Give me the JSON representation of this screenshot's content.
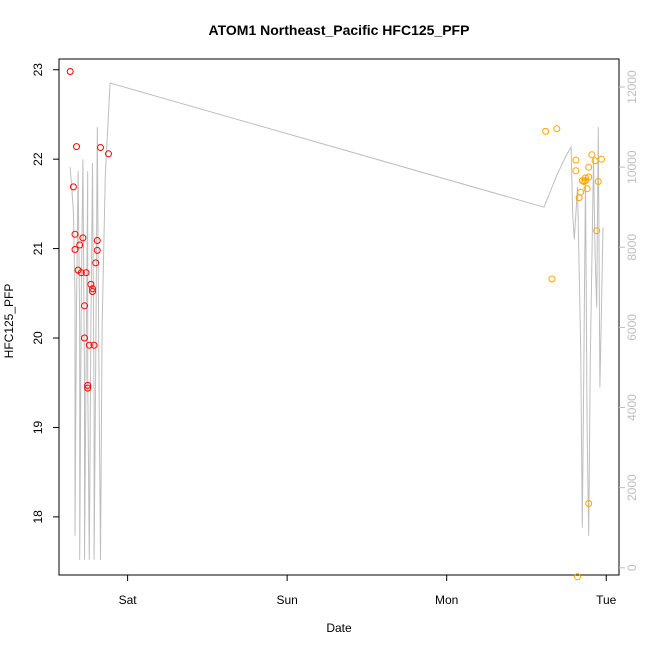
{
  "chart_data": {
    "type": "scatter",
    "title": "ATOM1 Northeast_Pacific HFC125_PFP",
    "xlabel": "Date",
    "ylabel": "HFC125_PFP",
    "x_unit": "days since the Sat tick",
    "xlim": [
      -0.43,
      3.08
    ],
    "ylim": [
      17.35,
      23.12
    ],
    "y2lim": [
      -180,
      12700
    ],
    "x_ticks": [
      {
        "label": "Sat",
        "value": 0
      },
      {
        "label": "Sun",
        "value": 1
      },
      {
        "label": "Mon",
        "value": 2
      },
      {
        "label": "Tue",
        "value": 3
      }
    ],
    "y_ticks": [
      18,
      19,
      20,
      21,
      22,
      23
    ],
    "y2_ticks": [
      0,
      2000,
      4000,
      6000,
      8000,
      10000,
      12000
    ],
    "grid": false,
    "colors": {
      "series1": "#ff0000",
      "series2": "#ffa500",
      "altitude_line": "#bebebe",
      "axis": "#000000",
      "right_axis": "#bebebe"
    },
    "series": [
      {
        "color": "#ff0000",
        "points": [
          [
            -0.36,
            22.98
          ],
          [
            -0.34,
            21.69
          ],
          [
            -0.33,
            21.16
          ],
          [
            -0.33,
            20.99
          ],
          [
            -0.32,
            22.14
          ],
          [
            -0.31,
            20.76
          ],
          [
            -0.3,
            21.04
          ],
          [
            -0.29,
            20.73
          ],
          [
            -0.28,
            21.12
          ],
          [
            -0.27,
            20.36
          ],
          [
            -0.27,
            20.0
          ],
          [
            -0.26,
            20.73
          ],
          [
            -0.25,
            19.47
          ],
          [
            -0.25,
            19.44
          ],
          [
            -0.24,
            19.92
          ],
          [
            -0.23,
            20.6
          ],
          [
            -0.22,
            20.52
          ],
          [
            -0.22,
            20.55
          ],
          [
            -0.21,
            19.92
          ],
          [
            -0.2,
            20.84
          ],
          [
            -0.19,
            20.98
          ],
          [
            -0.19,
            21.09
          ],
          [
            -0.17,
            22.13
          ],
          [
            -0.12,
            22.06
          ]
        ]
      },
      {
        "color": "#ffa500",
        "points": [
          [
            2.62,
            22.31
          ],
          [
            2.66,
            20.66
          ],
          [
            2.69,
            22.34
          ],
          [
            2.81,
            21.99
          ],
          [
            2.81,
            21.87
          ],
          [
            2.83,
            21.57
          ],
          [
            2.84,
            21.63
          ],
          [
            2.85,
            21.76
          ],
          [
            2.86,
            21.75
          ],
          [
            2.87,
            21.79
          ],
          [
            2.87,
            21.76
          ],
          [
            2.88,
            21.67
          ],
          [
            2.89,
            21.91
          ],
          [
            2.89,
            21.8
          ],
          [
            2.89,
            18.15
          ],
          [
            2.91,
            22.05
          ],
          [
            2.93,
            21.98
          ],
          [
            2.94,
            21.2
          ],
          [
            2.95,
            21.75
          ],
          [
            2.97,
            22.0
          ],
          [
            2.82,
            17.33
          ]
        ]
      }
    ],
    "altitude_line": {
      "color": "#bebebe",
      "axis": "right",
      "points": [
        [
          -0.36,
          10000
        ],
        [
          -0.34,
          8900
        ],
        [
          -0.33,
          6800
        ],
        [
          -0.33,
          800
        ],
        [
          -0.32,
          6500
        ],
        [
          -0.31,
          9900
        ],
        [
          -0.3,
          6000
        ],
        [
          -0.3,
          200
        ],
        [
          -0.29,
          6800
        ],
        [
          -0.28,
          10200
        ],
        [
          -0.27,
          4500
        ],
        [
          -0.27,
          200
        ],
        [
          -0.26,
          5000
        ],
        [
          -0.25,
          9900
        ],
        [
          -0.25,
          4800
        ],
        [
          -0.24,
          200
        ],
        [
          -0.23,
          6000
        ],
        [
          -0.22,
          10100
        ],
        [
          -0.21,
          4000
        ],
        [
          -0.21,
          200
        ],
        [
          -0.2,
          5000
        ],
        [
          -0.19,
          11000
        ],
        [
          -0.18,
          5000
        ],
        [
          -0.17,
          200
        ],
        [
          -0.16,
          6000
        ],
        [
          -0.14,
          9800
        ],
        [
          -0.11,
          12100
        ],
        [
          2.61,
          9000
        ],
        [
          2.69,
          9800
        ],
        [
          2.75,
          10300
        ],
        [
          2.78,
          10500
        ],
        [
          2.79,
          8800
        ],
        [
          2.8,
          8200
        ],
        [
          2.82,
          9500
        ],
        [
          2.84,
          5500
        ],
        [
          2.85,
          1000
        ],
        [
          2.86,
          5200
        ],
        [
          2.87,
          9800
        ],
        [
          2.88,
          3500
        ],
        [
          2.89,
          800
        ],
        [
          2.9,
          5200
        ],
        [
          2.92,
          10200
        ],
        [
          2.93,
          7800
        ],
        [
          2.94,
          6500
        ],
        [
          2.95,
          11000
        ],
        [
          2.96,
          4500
        ],
        [
          2.97,
          6500
        ],
        [
          2.98,
          8500
        ]
      ]
    }
  }
}
